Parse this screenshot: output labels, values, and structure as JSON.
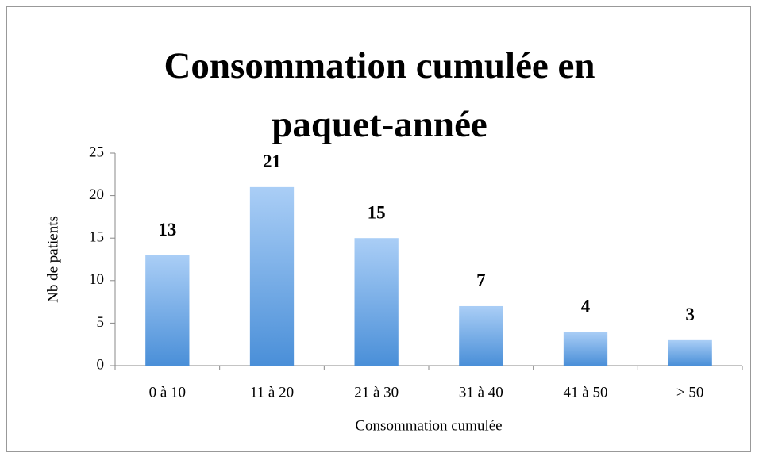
{
  "chart_data": {
    "type": "bar",
    "title": "Consommation cumulée en paquet-année",
    "categories": [
      "0 à 10",
      "11 à 20",
      "21 à 30",
      "31 à 40",
      "41 à 50",
      "> 50"
    ],
    "values": [
      13,
      21,
      15,
      7,
      4,
      3
    ],
    "color": "#4a8fd8",
    "ylim": [
      0,
      25
    ],
    "yticks": [
      0,
      5,
      10,
      15,
      20,
      25
    ],
    "xlabel": "Consommation cumulée",
    "ylabel": "Nb de patients",
    "grid": false
  }
}
